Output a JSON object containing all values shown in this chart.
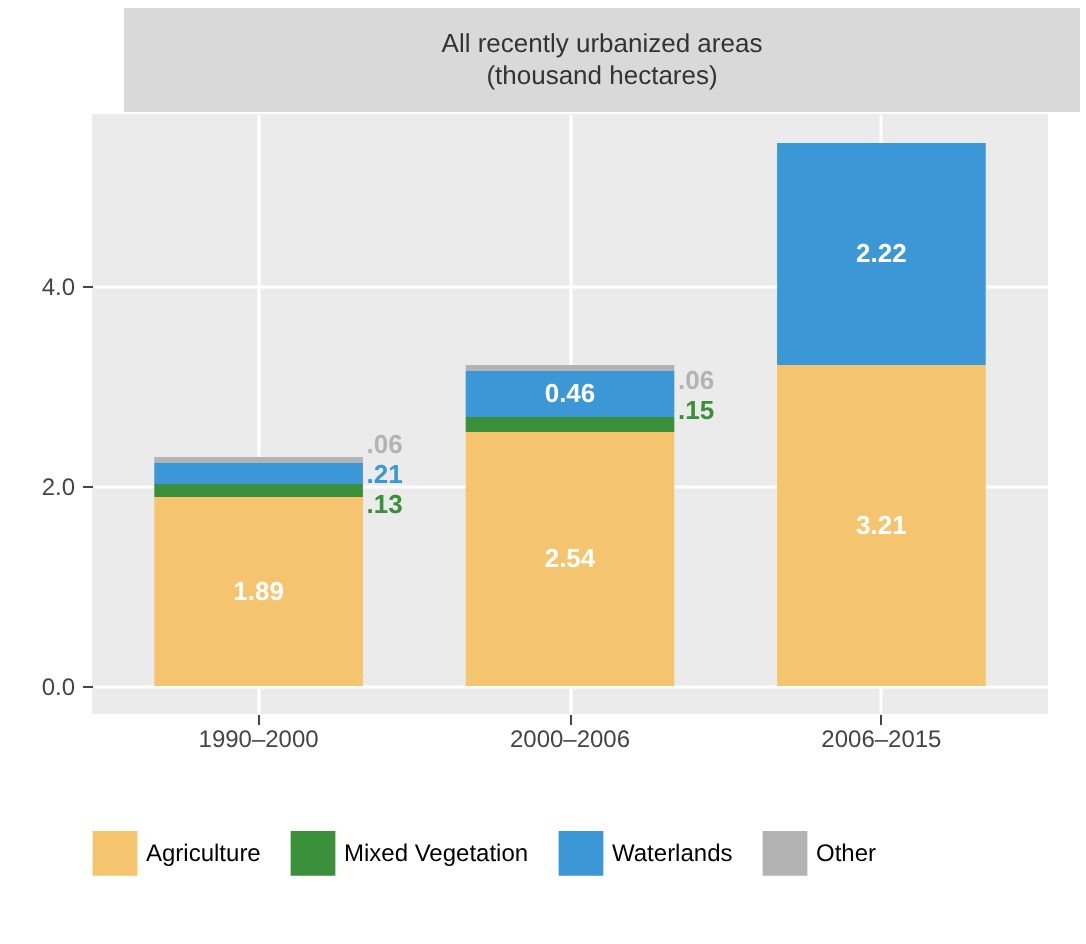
{
  "chart_data": {
    "type": "bar",
    "title": "All recently urbanized areas",
    "subtitle": "(thousand hectares)",
    "stacked": true,
    "categories": [
      "1990–2000",
      "2000–2006",
      "2006–2015"
    ],
    "series": [
      {
        "name": "Agriculture",
        "color": "#f5c46e",
        "values": [
          1.89,
          2.54,
          3.21
        ],
        "value_labels": [
          "1.89",
          "2.54",
          "3.21"
        ]
      },
      {
        "name": "Mixed Vegetation",
        "color": "#3a8f3a",
        "values": [
          0.13,
          0.15,
          null
        ],
        "value_labels": [
          ".13",
          ".15",
          null
        ]
      },
      {
        "name": "Waterlands",
        "color": "#3b97d6",
        "values": [
          0.21,
          0.46,
          2.22
        ],
        "value_labels": [
          ".21",
          "0.46",
          "2.22"
        ]
      },
      {
        "name": "Other",
        "color": "#b3b3b3",
        "values": [
          0.06,
          0.06,
          null
        ],
        "value_labels": [
          ".06",
          ".06",
          null
        ]
      }
    ],
    "ylim": [
      -0.28,
      5.72
    ],
    "yticks": [
      {
        "value": 0,
        "label": "0.0"
      },
      {
        "value": 2,
        "label": "2.0"
      },
      {
        "value": 4,
        "label": "4.0"
      }
    ],
    "grid": true,
    "legend": "bottom"
  }
}
